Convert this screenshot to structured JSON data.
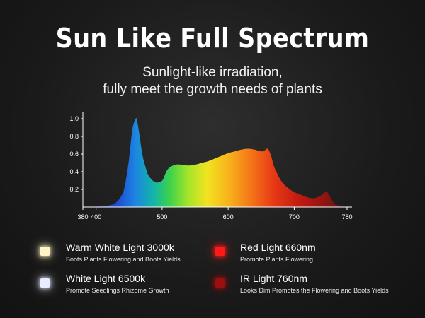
{
  "header": {
    "title": "Sun Like Full Spectrum",
    "subtitle_line1": "Sunlight-like irradiation,",
    "subtitle_line2": "fully meet the growth needs of plants"
  },
  "chart_data": {
    "type": "area",
    "title": "",
    "xlabel": "",
    "ylabel": "",
    "xlim": [
      380,
      780
    ],
    "ylim": [
      0,
      1.0
    ],
    "x_ticks": [
      380,
      400,
      500,
      600,
      700,
      780
    ],
    "y_ticks": [
      0.2,
      0.4,
      0.6,
      0.8,
      1.0
    ],
    "grid": false,
    "series": [
      {
        "x": [
          380,
          400,
          420,
          430,
          440,
          445,
          450,
          455,
          460,
          462,
          465,
          470,
          475,
          480,
          490,
          500,
          505,
          510,
          520,
          530,
          540,
          550,
          560,
          570,
          580,
          590,
          600,
          610,
          620,
          630,
          640,
          650,
          655,
          660,
          665,
          670,
          680,
          690,
          700,
          710,
          720,
          730,
          740,
          745,
          750,
          760,
          770,
          780
        ],
        "y": [
          0,
          0.005,
          0.02,
          0.05,
          0.15,
          0.3,
          0.55,
          0.88,
          1.0,
          0.98,
          0.85,
          0.6,
          0.45,
          0.35,
          0.28,
          0.3,
          0.38,
          0.44,
          0.48,
          0.48,
          0.47,
          0.48,
          0.5,
          0.52,
          0.55,
          0.58,
          0.61,
          0.63,
          0.65,
          0.66,
          0.65,
          0.63,
          0.64,
          0.66,
          0.58,
          0.45,
          0.3,
          0.22,
          0.17,
          0.14,
          0.11,
          0.1,
          0.13,
          0.16,
          0.17,
          0.05,
          0.01,
          0
        ]
      }
    ]
  },
  "legend": [
    {
      "title": "Warm White Light 3000k",
      "desc": "Boots Plants Flowering and Boots Yields",
      "color": "#fff4c8"
    },
    {
      "title": "White Light 6500k",
      "desc": "Promote Seedlings Rhizome Growth",
      "color": "#e8ecff"
    },
    {
      "title": "Red Light 660nm",
      "desc": "Promote Plants Flowering",
      "color": "#ff1a1a"
    },
    {
      "title": "IR Light 760nm",
      "desc": "Looks Dim Promotes the Flowering and Boots Yields",
      "color": "#9a0f0f"
    }
  ]
}
